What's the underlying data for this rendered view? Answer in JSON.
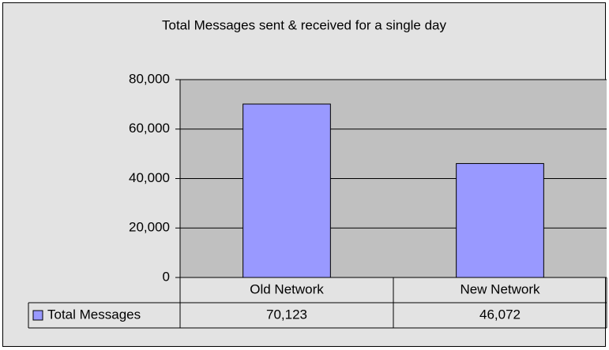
{
  "chart_data": {
    "type": "bar",
    "title": "Total Messages sent & received for a single day",
    "categories": [
      "Old Network",
      "New Network"
    ],
    "series": [
      {
        "name": "Total Messages",
        "color": "#9999ff",
        "values": [
          70123,
          46072
        ],
        "value_labels": [
          "70,123",
          "46,072"
        ]
      }
    ],
    "ylim": [
      0,
      80000
    ],
    "yticks": [
      0,
      {
        "value": 20000,
        "label": "20,000"
      },
      {
        "value": 40000,
        "label": "40,000"
      },
      {
        "value": 60000,
        "label": "60,000"
      },
      {
        "value": 80000,
        "label": "80,000"
      }
    ],
    "grid": true
  }
}
